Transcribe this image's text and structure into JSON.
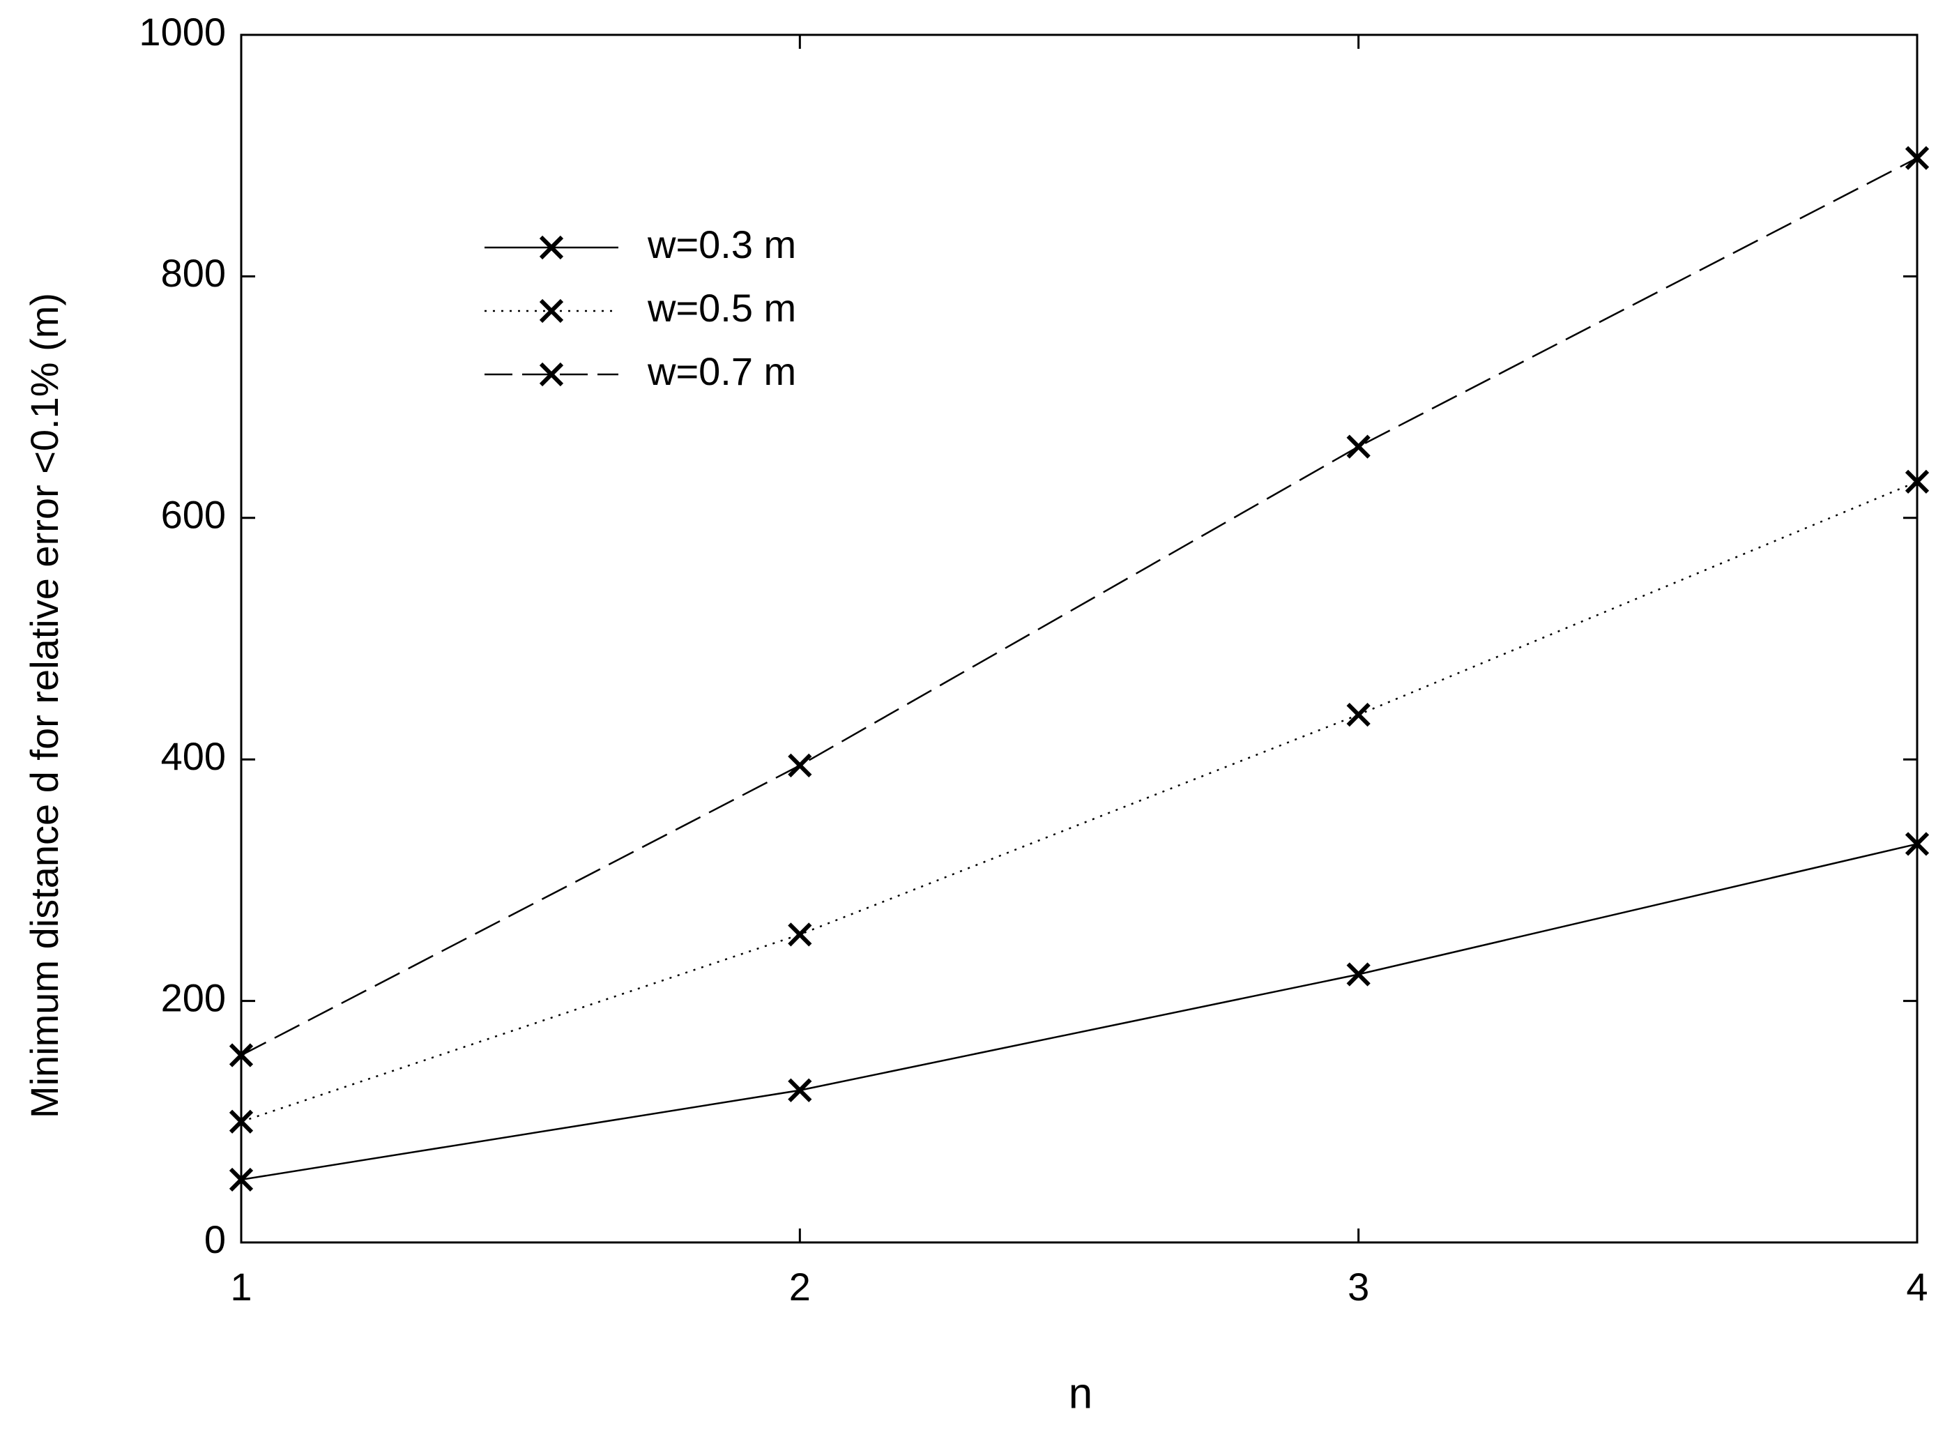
{
  "chart_data": {
    "type": "line",
    "x_label": "n",
    "y_label": "Minimum distance d for relative error <0.1% (m)",
    "x": [
      1,
      2,
      3,
      4
    ],
    "xlim": [
      1,
      4
    ],
    "xticks": [
      1,
      2,
      3,
      4
    ],
    "ylim": [
      0,
      1000
    ],
    "yticks": [
      0,
      200,
      400,
      600,
      800,
      1000
    ],
    "grid": false,
    "legend": "upper left",
    "marker": "x",
    "series": [
      {
        "name": "w=0.3 m",
        "color": "#000000",
        "linestyle": "solid",
        "values": [
          52,
          126,
          222,
          330
        ]
      },
      {
        "name": "w=0.5 m",
        "color": "#000000",
        "linestyle": "dotted",
        "values": [
          100,
          255,
          437,
          630
        ]
      },
      {
        "name": "w=0.7 m",
        "color": "#000000",
        "linestyle": "dashed",
        "values": [
          155,
          395,
          659,
          898
        ]
      }
    ]
  }
}
